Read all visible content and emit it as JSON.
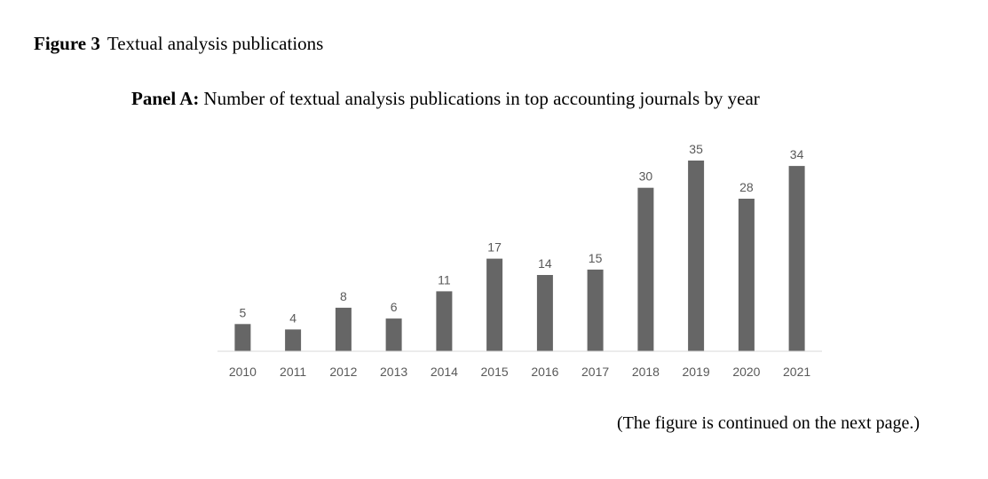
{
  "figure": {
    "number": "Figure 3",
    "title": "Textual analysis publications"
  },
  "panel": {
    "label": "Panel A:",
    "title": "Number of textual analysis publications in top accounting journals by year"
  },
  "footer_note": "(The figure is continued on the next page.)",
  "colors": {
    "bar": "#666666",
    "axis": "#d9d9d9",
    "label": "#595959"
  },
  "chart_data": {
    "type": "bar",
    "categories": [
      "2010",
      "2011",
      "2012",
      "2013",
      "2014",
      "2015",
      "2016",
      "2017",
      "2018",
      "2019",
      "2020",
      "2021"
    ],
    "values": [
      5,
      4,
      8,
      6,
      11,
      17,
      14,
      15,
      30,
      35,
      28,
      34
    ],
    "title": "",
    "xlabel": "",
    "ylabel": "",
    "ylim": [
      0,
      35
    ],
    "data_labels": true,
    "grid": false,
    "legend": "none"
  }
}
